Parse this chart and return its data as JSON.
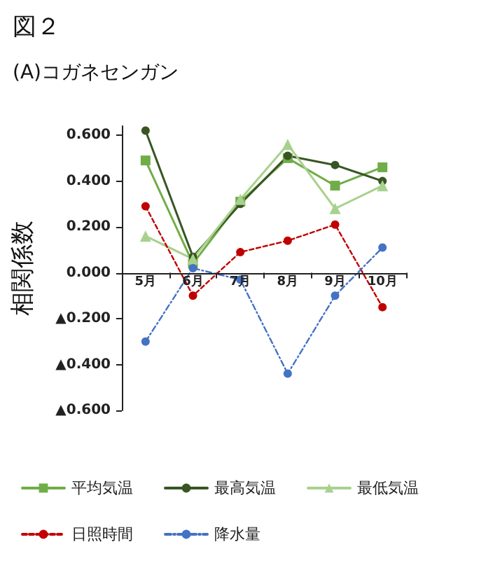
{
  "chart_data": {
    "type": "line",
    "title": "図２",
    "subtitle": "(A)コガネセンガン",
    "ylabel": "相関係数",
    "categories": [
      "5月",
      "6月",
      "7月",
      "8月",
      "9月",
      "10月"
    ],
    "series": [
      {
        "name": "平均気温",
        "color": "#70ad47",
        "marker": "square",
        "line_style": "solid",
        "values": [
          0.49,
          0.04,
          0.31,
          0.5,
          0.38,
          0.46
        ]
      },
      {
        "name": "最高気温",
        "color": "#375623",
        "marker": "circle",
        "line_style": "solid",
        "values": [
          0.62,
          0.07,
          0.3,
          0.51,
          0.47,
          0.4
        ]
      },
      {
        "name": "最低気温",
        "color": "#a9d18e",
        "marker": "triangle",
        "line_style": "solid",
        "values": [
          0.16,
          0.06,
          0.32,
          0.56,
          0.28,
          0.38
        ]
      },
      {
        "name": "日照時間",
        "color": "#c00000",
        "marker": "circle",
        "line_style": "dashed",
        "values": [
          0.29,
          -0.1,
          0.09,
          0.14,
          0.21,
          -0.15
        ]
      },
      {
        "name": "降水量",
        "color": "#4472c4",
        "marker": "circle",
        "line_style": "dotted",
        "values": [
          -0.3,
          0.02,
          -0.03,
          -0.44,
          -0.1,
          0.11
        ]
      }
    ],
    "ylim": [
      -0.6,
      0.64
    ],
    "yticks": [
      {
        "value": -0.6,
        "label": "▲0.600"
      },
      {
        "value": -0.4,
        "label": "▲0.400"
      },
      {
        "value": -0.2,
        "label": "▲0.200"
      },
      {
        "value": 0,
        "label": "0.000"
      },
      {
        "value": 0.2,
        "label": "0.200"
      },
      {
        "value": 0.4,
        "label": "0.400"
      },
      {
        "value": 0.6,
        "label": "0.600"
      }
    ],
    "grid": false,
    "legend": "bottom"
  }
}
